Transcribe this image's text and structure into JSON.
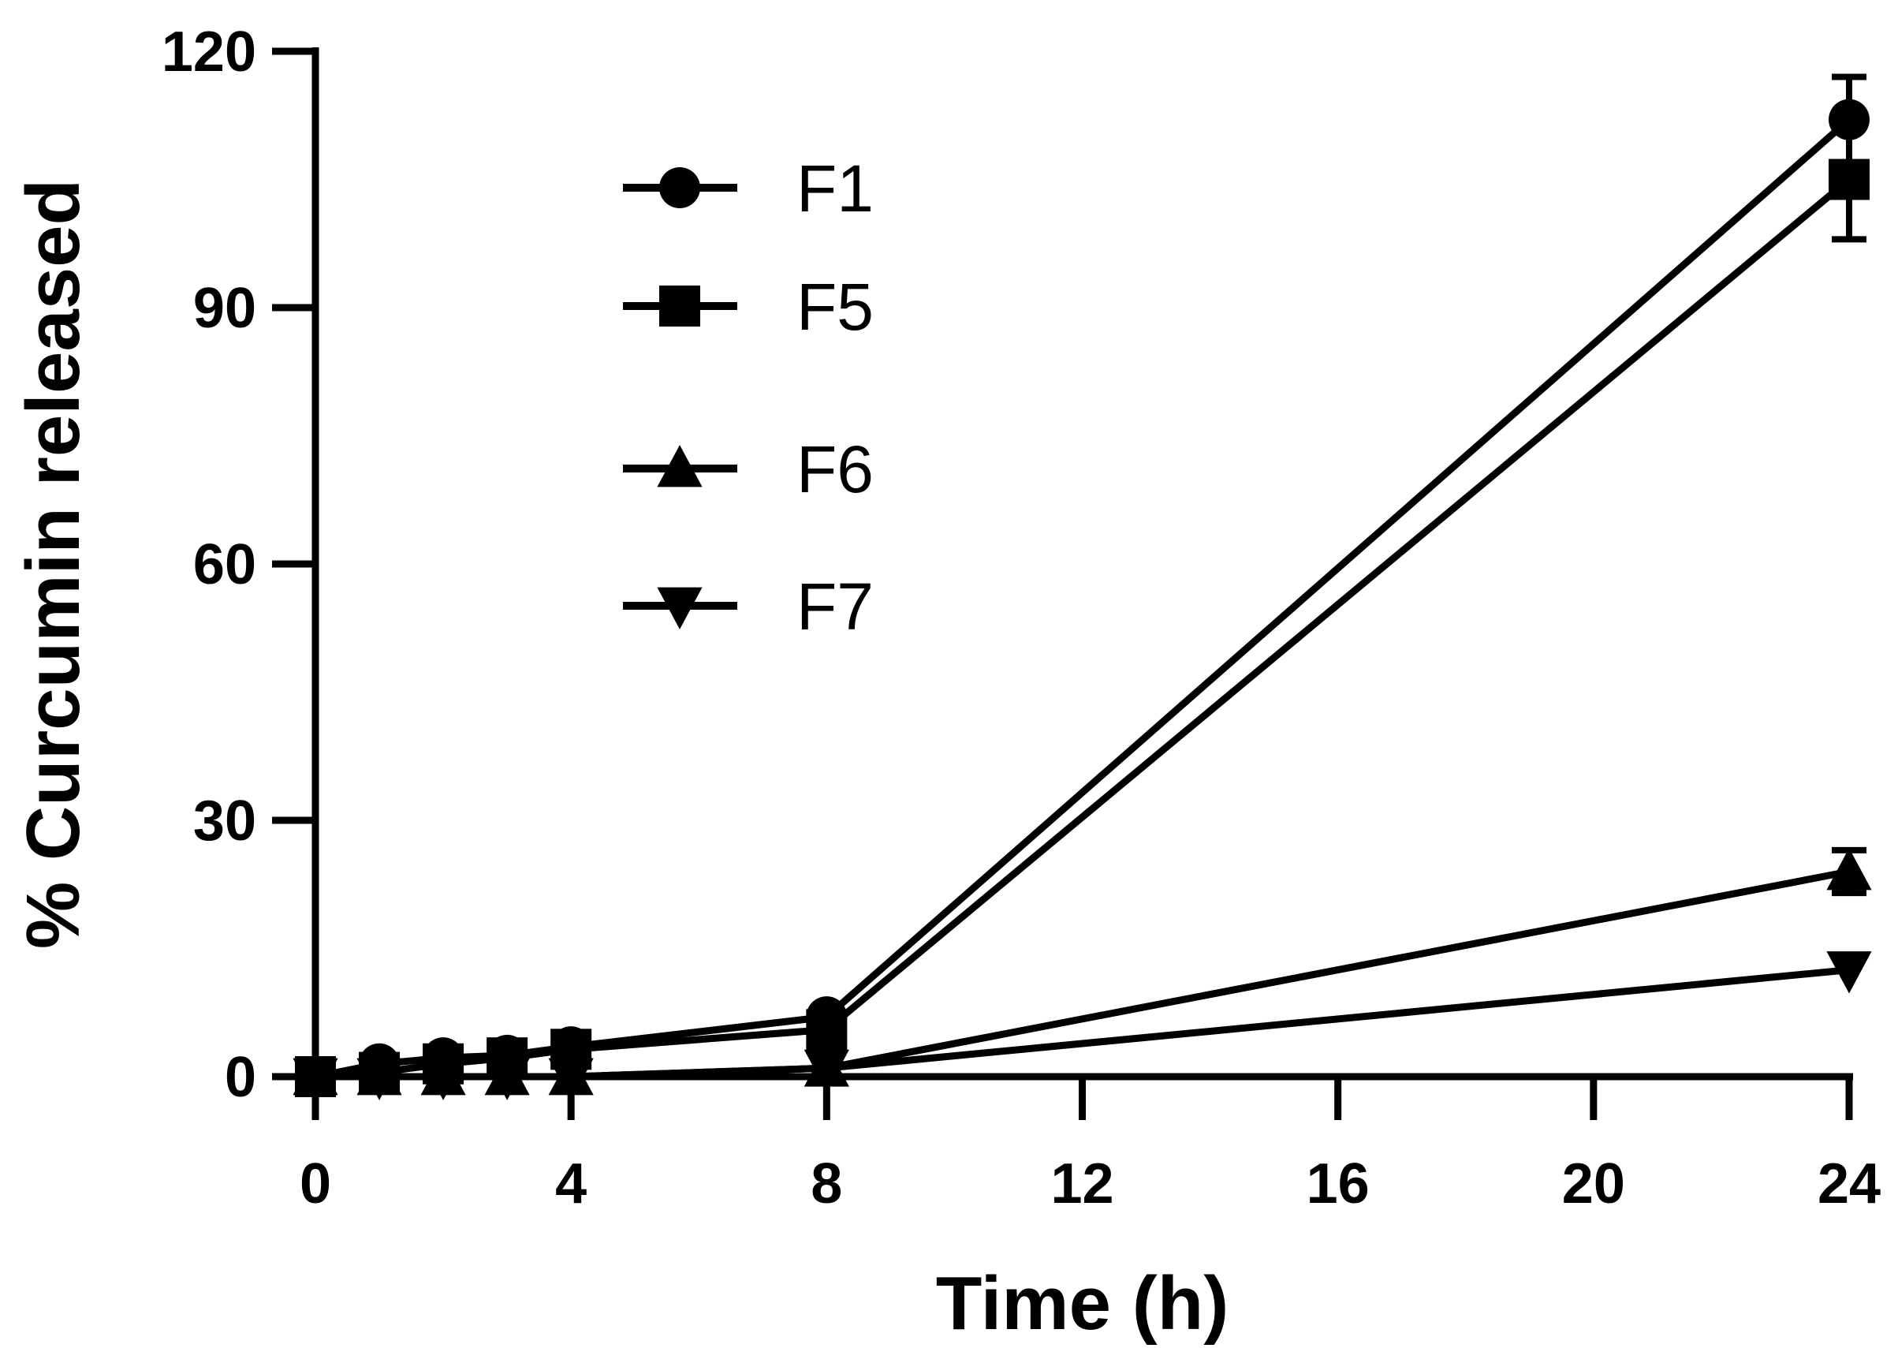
{
  "chart_data": {
    "type": "line",
    "title": "",
    "xlabel": "Time (h)",
    "ylabel": "% Curcumin released",
    "xlim": [
      0,
      24
    ],
    "ylim": [
      0,
      120
    ],
    "xticks": [
      0,
      4,
      8,
      12,
      16,
      20,
      24
    ],
    "yticks": [
      0,
      30,
      60,
      90,
      120
    ],
    "x": [
      0,
      1,
      2,
      3,
      4,
      8,
      24
    ],
    "legend_position": "top-left",
    "grid": false,
    "series": [
      {
        "name": "F1",
        "marker": "circle",
        "values": [
          0,
          1.5,
          2.2,
          2.5,
          3.5,
          7,
          112
        ],
        "errors": [
          0,
          0,
          0,
          0,
          0,
          0,
          5
        ]
      },
      {
        "name": "F5",
        "marker": "square",
        "values": [
          0,
          0.5,
          1.5,
          2.2,
          3.2,
          5.5,
          105
        ],
        "errors": [
          0,
          0,
          0,
          0,
          0,
          0,
          7
        ]
      },
      {
        "name": "F6",
        "marker": "triangle-up",
        "values": [
          0,
          0,
          0,
          0,
          0,
          1,
          24
        ],
        "errors": [
          0,
          0,
          0,
          0,
          0,
          0,
          2.5
        ]
      },
      {
        "name": "F7",
        "marker": "triangle-down",
        "values": [
          0,
          0,
          0,
          0,
          0,
          1,
          12.5
        ],
        "errors": [
          0,
          0,
          0,
          0,
          0,
          0,
          0
        ]
      }
    ],
    "colors": {
      "line": "#000000",
      "background": "#ffffff"
    }
  }
}
